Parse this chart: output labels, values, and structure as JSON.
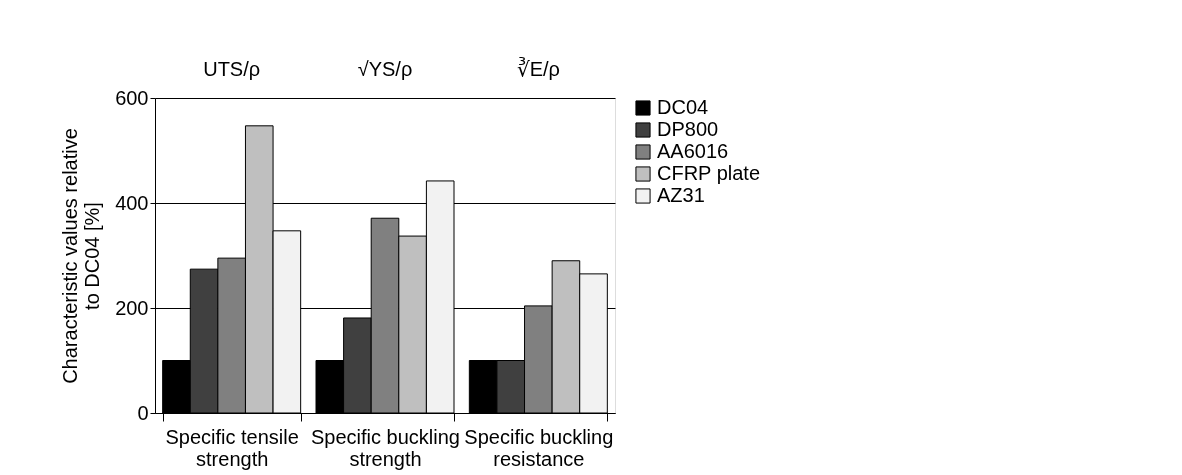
{
  "chart_data": {
    "type": "bar",
    "ylabel": "Characteristic values relative to DC04 [%]",
    "categories": [
      "Specific tensile strength",
      "Specific buckling strength",
      "Specific buckling resistance"
    ],
    "series": [
      {
        "name": "DC04",
        "color": "#000000",
        "values": [
          100,
          100,
          100
        ]
      },
      {
        "name": "DP800",
        "color": "#404040",
        "values": [
          274,
          181,
          100
        ]
      },
      {
        "name": "AA6016",
        "color": "#808080",
        "values": [
          295,
          371,
          204
        ]
      },
      {
        "name": "CFRP plate",
        "color": "#bfbfbf",
        "values": [
          547,
          337,
          290
        ]
      },
      {
        "name": "AZ31",
        "color": "#f2f2f2",
        "values": [
          347,
          442,
          265
        ]
      }
    ],
    "annotations": [
      "UTS/ρ",
      "√YS/ρ",
      "∛E/ρ"
    ],
    "ylim": [
      0,
      600
    ],
    "yticks": [
      0,
      200,
      400,
      600
    ],
    "grid": "y",
    "legend": "right"
  }
}
